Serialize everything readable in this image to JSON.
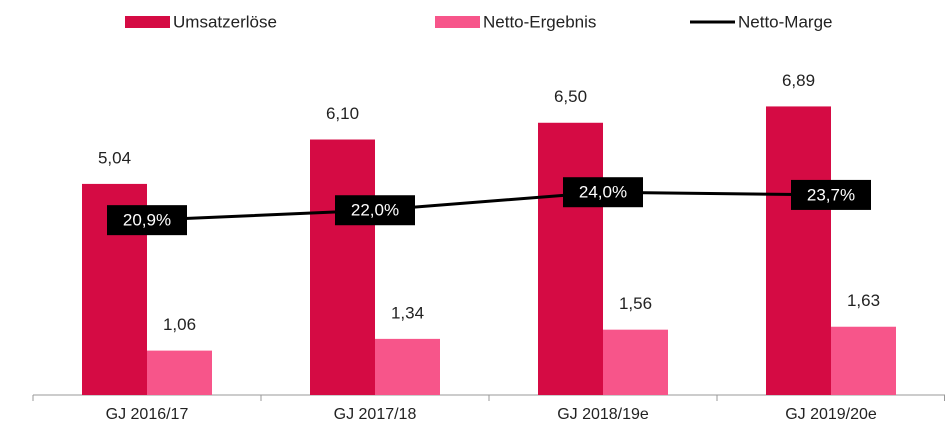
{
  "chart_data": {
    "type": "bar",
    "categories": [
      "GJ 2016/17",
      "GJ 2017/18",
      "GJ 2018/19e",
      "GJ 2019/20e"
    ],
    "series": [
      {
        "name": "Umsatzerlöse",
        "color": "#d50b44",
        "values": [
          5.04,
          6.1,
          6.5,
          6.89
        ],
        "value_labels": [
          "5,04",
          "6,10",
          "6,50",
          "6,89"
        ]
      },
      {
        "name": "Netto-Ergebnis",
        "color": "#f7558a",
        "values": [
          1.06,
          1.34,
          1.56,
          1.63
        ],
        "value_labels": [
          "1,06",
          "1,34",
          "1,56",
          "1,63"
        ]
      },
      {
        "name": "Netto-Marge",
        "type": "line",
        "axis": "y2",
        "color": "#000000",
        "values": [
          20.9,
          22.0,
          24.0,
          23.7
        ],
        "value_labels": [
          "20,9%",
          "22,0%",
          "24,0%",
          "23,7%"
        ]
      }
    ],
    "ylim": [
      0,
      8.5
    ],
    "y2lim": [
      1.5,
      41
    ],
    "grid": false
  }
}
